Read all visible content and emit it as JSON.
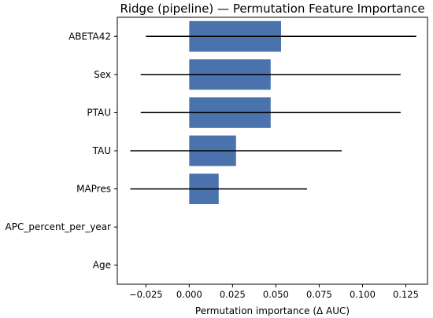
{
  "chart_data": {
    "type": "bar",
    "orientation": "horizontal",
    "title": "Ridge (pipeline) — Permutation Feature Importance",
    "xlabel": "Permutation importance (Δ AUC)",
    "ylabel": "",
    "categories": [
      "ABETA42",
      "Sex",
      "PTAU",
      "TAU",
      "MAPres",
      "APC_percent_per_year",
      "Age"
    ],
    "values": [
      0.053,
      0.047,
      0.047,
      0.027,
      0.017,
      0.0,
      0.0
    ],
    "errors": [
      0.078,
      0.075,
      0.075,
      0.061,
      0.051,
      0.0,
      0.0
    ],
    "xlim": [
      -0.0415,
      0.1375
    ],
    "xticks": [
      -0.025,
      0.0,
      0.025,
      0.05,
      0.075,
      0.1,
      0.125
    ],
    "xtick_labels": [
      "−0.025",
      "0.000",
      "0.025",
      "0.050",
      "0.075",
      "0.100",
      "0.125"
    ],
    "grid": false,
    "bar_color": "#4a72ad",
    "errorbar_color": "#000000"
  }
}
